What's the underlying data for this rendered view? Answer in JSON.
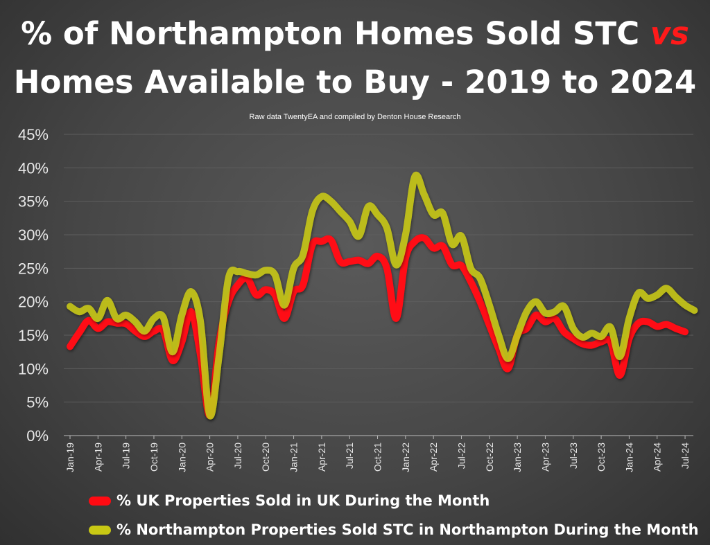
{
  "title": {
    "line1_prefix": "% of Northampton Homes Sold STC ",
    "line1_vs": "vs",
    "line2": "Homes Available to Buy - 2019 to 2024"
  },
  "subtitle": "Raw data TwentyEA and compiled by Denton House Research",
  "colors": {
    "uk": "#ff0a12",
    "northampton": "#c8c814",
    "background": "#464646"
  },
  "chart_data": {
    "type": "line",
    "title": "% of Northampton Homes Sold STC vs Homes Available to Buy - 2019 to 2024",
    "xlabel": "",
    "ylabel": "",
    "ylim": [
      0,
      45
    ],
    "yticks": [
      "0%",
      "5%",
      "10%",
      "15%",
      "20%",
      "25%",
      "30%",
      "35%",
      "40%",
      "45%"
    ],
    "xtick_labels": [
      "Jan-19",
      "Apr-19",
      "Jul-19",
      "Oct-19",
      "Jan-20",
      "Apr-20",
      "Jul-20",
      "Oct-20",
      "Jan-21",
      "Apr-21",
      "Jul-21",
      "Oct-21",
      "Jan-22",
      "Apr-22",
      "Jul-22",
      "Oct-22",
      "Jan-23",
      "Apr-23",
      "Jul-23",
      "Oct-23",
      "Jan-24",
      "Apr-24",
      "Jul-24"
    ],
    "x_start": "Jan-19",
    "grid": true,
    "legend_position": "bottom",
    "series": [
      {
        "name": "% UK Properties Sold in UK During the Month",
        "values": [
          13.3,
          15.4,
          17.2,
          16,
          17,
          16.8,
          16.7,
          15.6,
          14.8,
          15.6,
          15.7,
          11.2,
          14,
          18.5,
          12,
          3,
          14,
          20,
          22.5,
          23.5,
          21,
          21.8,
          21,
          17.5,
          21.5,
          22.5,
          28.5,
          29,
          29.2,
          26,
          26,
          26.2,
          25.7,
          26.8,
          25,
          17.5,
          26.5,
          29,
          29.5,
          28,
          28.3,
          25.5,
          25.4,
          23,
          20,
          16.5,
          13,
          10,
          15,
          16,
          18,
          17,
          17.5,
          15.5,
          14.5,
          13.7,
          13.5,
          14,
          14,
          9,
          14.5,
          16.8,
          17,
          16.3,
          16.6,
          16,
          15.5
        ]
      },
      {
        "name": "% Northampton Properties Sold STC in Northampton During the Month",
        "values": [
          19.3,
          18.5,
          19,
          17.5,
          20.2,
          17.5,
          18,
          17,
          15.6,
          17.5,
          17.7,
          12.5,
          18,
          21.5,
          17,
          3,
          12,
          23.5,
          24.5,
          24.2,
          24,
          24.7,
          24,
          19.5,
          25,
          27,
          33.5,
          35.7,
          35,
          33.5,
          32,
          29.8,
          34.2,
          33,
          31,
          25.5,
          30,
          38.7,
          36,
          33,
          33.2,
          28.6,
          29.8,
          25,
          23.5,
          19.5,
          15,
          11.5,
          15,
          18.5,
          20,
          18.3,
          18.5,
          19.3,
          16,
          14.7,
          15.3,
          14.8,
          16.2,
          11.8,
          17.5,
          21.3,
          20.5,
          21,
          22,
          20.7,
          19.5,
          18.7
        ]
      }
    ]
  }
}
